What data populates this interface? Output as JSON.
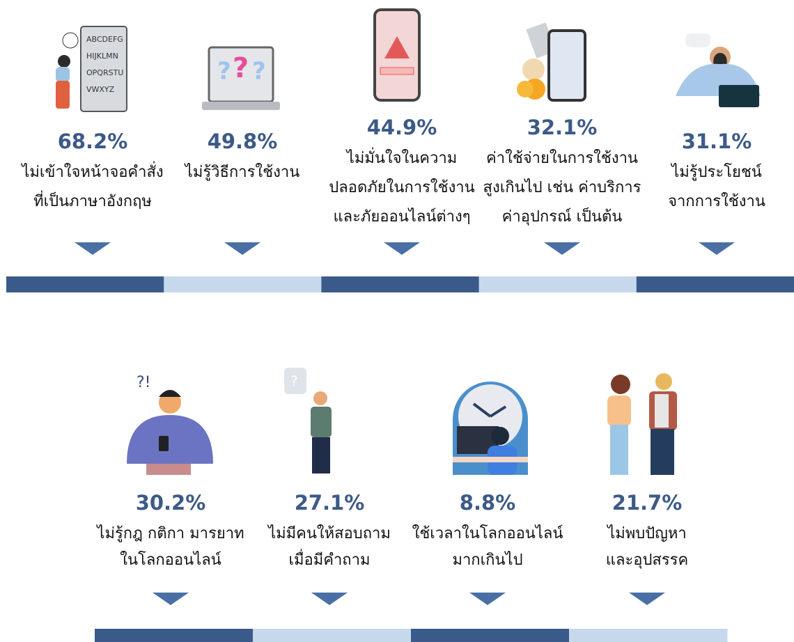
{
  "illustration_text": [
    "ABCDEFG",
    "HIJKLMN",
    "OPQRSTU",
    "VWXYZ"
  ],
  "top_items": [
    {
      "value": "68.2%",
      "lines": [
        "ไม่เข้าใจหน้าจอคำสั่ง",
        "ที่เป็นภาษาอังกฤษ"
      ]
    },
    {
      "value": "49.8%",
      "lines": [
        "ไม่รู้วิธีการใช้งาน"
      ]
    },
    {
      "value": "44.9%",
      "lines": [
        "ไม่มั่นใจในความ",
        "ปลอดภัยในการใช้งาน",
        "และภัยออนไลน์ต่างๆ"
      ]
    },
    {
      "value": "32.1%",
      "lines": [
        "ค่าใช้จ่ายในการใช้งาน",
        "สูงเกินไป เช่น ค่าบริการ",
        "ค่าอุปกรณ์ เป็นต้น"
      ]
    },
    {
      "value": "31.1%",
      "lines": [
        "ไม่รู้ประโยชน์",
        "จากการใช้งาน"
      ]
    }
  ],
  "bottom_items": [
    {
      "value": "30.2%",
      "lines": [
        "ไม่รู้กฎ กติกา มารยาท",
        "ในโลกออนไลน์"
      ]
    },
    {
      "value": "27.1%",
      "lines": [
        "ไม่มีคนให้สอบถาม",
        "เมื่อมีคำถาม"
      ]
    },
    {
      "value": "8.8%",
      "lines": [
        "ใช้เวลาในโลกออนไลน์",
        "มากเกินไป"
      ]
    },
    {
      "value": "21.7%",
      "lines": [
        "ไม่พบปัญหา",
        "และอุปสรรค"
      ]
    }
  ]
}
